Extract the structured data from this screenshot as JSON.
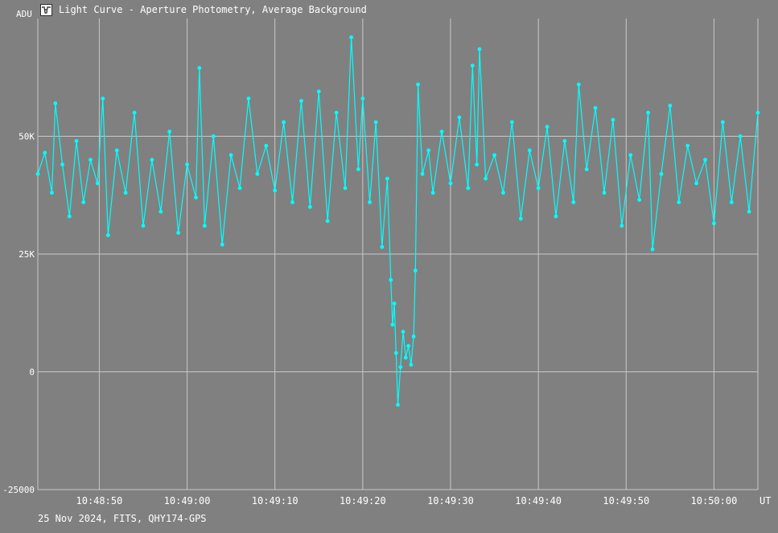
{
  "window": {
    "title": "Light Curve - Aperture Photometry, Average Background"
  },
  "footer": {
    "info": "25 Nov 2024, FITS, QHY174-GPS"
  },
  "icons": {
    "app": "light-curve-app-icon"
  },
  "colors": {
    "background": "#808080",
    "grid": "#c8c8c8",
    "series": "#00ffff",
    "text": "#ffffff"
  },
  "chart_data": {
    "type": "line",
    "title": "Light Curve - Aperture Photometry, Average Background",
    "xlabel": "UT",
    "ylabel": "ADU",
    "ylim": [
      -25000,
      75000
    ],
    "xlim": [
      "10:48:43",
      "10:50:05"
    ],
    "y_ticks": [
      {
        "value": 50000,
        "label": "50K"
      },
      {
        "value": 25000,
        "label": "25K"
      },
      {
        "value": 0,
        "label": "0"
      },
      {
        "value": -25000,
        "label": "-25000"
      }
    ],
    "x_ticks": [
      "10:48:50",
      "10:49:00",
      "10:49:10",
      "10:49:20",
      "10:49:30",
      "10:49:40",
      "10:49:50",
      "10:50:00"
    ],
    "grid": true,
    "markers": true,
    "series": [
      {
        "baseline": 43000,
        "points": [
          [
            "10:48:43.0",
            42000
          ],
          [
            "10:48:43.8",
            46500
          ],
          [
            "10:48:44.6",
            38000
          ],
          [
            "10:48:45.0",
            57000
          ],
          [
            "10:48:45.8",
            44000
          ],
          [
            "10:48:46.6",
            33000
          ],
          [
            "10:48:47.4",
            49000
          ],
          [
            "10:48:48.2",
            36000
          ],
          [
            "10:48:49.0",
            45000
          ],
          [
            "10:48:49.8",
            40000
          ],
          [
            "10:48:50.4",
            58000
          ],
          [
            "10:48:51.0",
            29000
          ],
          [
            "10:48:52.0",
            47000
          ],
          [
            "10:48:53.0",
            38000
          ],
          [
            "10:48:54.0",
            55000
          ],
          [
            "10:48:55.0",
            31000
          ],
          [
            "10:48:56.0",
            45000
          ],
          [
            "10:48:57.0",
            34000
          ],
          [
            "10:48:58.0",
            51000
          ],
          [
            "10:48:59.0",
            29500
          ],
          [
            "10:49:00.0",
            44000
          ],
          [
            "10:49:01.0",
            37000
          ],
          [
            "10:49:01.4",
            64500
          ],
          [
            "10:49:02.0",
            31000
          ],
          [
            "10:49:03.0",
            50000
          ],
          [
            "10:49:04.0",
            27000
          ],
          [
            "10:49:05.0",
            46000
          ],
          [
            "10:49:06.0",
            39000
          ],
          [
            "10:49:07.0",
            58000
          ],
          [
            "10:49:08.0",
            42000
          ],
          [
            "10:49:09.0",
            48000
          ],
          [
            "10:49:10.0",
            38500
          ],
          [
            "10:49:11.0",
            53000
          ],
          [
            "10:49:12.0",
            36000
          ],
          [
            "10:49:13.0",
            57500
          ],
          [
            "10:49:14.0",
            35000
          ],
          [
            "10:49:15.0",
            59500
          ],
          [
            "10:49:16.0",
            32000
          ],
          [
            "10:49:17.0",
            55000
          ],
          [
            "10:49:18.0",
            39000
          ],
          [
            "10:49:18.7",
            71000
          ],
          [
            "10:49:19.5",
            43000
          ],
          [
            "10:49:20.0",
            58000
          ],
          [
            "10:49:20.8",
            36000
          ],
          [
            "10:49:21.5",
            53000
          ],
          [
            "10:49:22.2",
            26500
          ],
          [
            "10:49:22.8",
            41000
          ],
          [
            "10:49:23.2",
            19500
          ],
          [
            "10:49:23.4",
            10000
          ],
          [
            "10:49:23.6",
            14500
          ],
          [
            "10:49:23.8",
            4000
          ],
          [
            "10:49:24.0",
            -7000
          ],
          [
            "10:49:24.3",
            1000
          ],
          [
            "10:49:24.6",
            8500
          ],
          [
            "10:49:24.9",
            3000
          ],
          [
            "10:49:25.2",
            5500
          ],
          [
            "10:49:25.5",
            1500
          ],
          [
            "10:49:25.8",
            7500
          ],
          [
            "10:49:26.0",
            21500
          ],
          [
            "10:49:26.3",
            61000
          ],
          [
            "10:49:26.8",
            42000
          ],
          [
            "10:49:27.5",
            47000
          ],
          [
            "10:49:28.0",
            38000
          ],
          [
            "10:49:29.0",
            51000
          ],
          [
            "10:49:30.0",
            40000
          ],
          [
            "10:49:31.0",
            54000
          ],
          [
            "10:49:32.0",
            39000
          ],
          [
            "10:49:32.5",
            65000
          ],
          [
            "10:49:33.0",
            44000
          ],
          [
            "10:49:33.3",
            68500
          ],
          [
            "10:49:34.0",
            41000
          ],
          [
            "10:49:35.0",
            46000
          ],
          [
            "10:49:36.0",
            38000
          ],
          [
            "10:49:37.0",
            53000
          ],
          [
            "10:49:38.0",
            32500
          ],
          [
            "10:49:39.0",
            47000
          ],
          [
            "10:49:40.0",
            39000
          ],
          [
            "10:49:41.0",
            52000
          ],
          [
            "10:49:42.0",
            33000
          ],
          [
            "10:49:43.0",
            49000
          ],
          [
            "10:49:44.0",
            36000
          ],
          [
            "10:49:44.6",
            61000
          ],
          [
            "10:49:45.5",
            43000
          ],
          [
            "10:49:46.5",
            56000
          ],
          [
            "10:49:47.5",
            38000
          ],
          [
            "10:49:48.5",
            53500
          ],
          [
            "10:49:49.5",
            31000
          ],
          [
            "10:49:50.5",
            46000
          ],
          [
            "10:49:51.5",
            36500
          ],
          [
            "10:49:52.5",
            55000
          ],
          [
            "10:49:53.0",
            26000
          ],
          [
            "10:49:54.0",
            42000
          ],
          [
            "10:49:55.0",
            56500
          ],
          [
            "10:49:56.0",
            36000
          ],
          [
            "10:49:57.0",
            48000
          ],
          [
            "10:49:58.0",
            40000
          ],
          [
            "10:49:59.0",
            45000
          ],
          [
            "10:50:00.0",
            31500
          ],
          [
            "10:50:01.0",
            53000
          ],
          [
            "10:50:02.0",
            36000
          ],
          [
            "10:50:03.0",
            50000
          ],
          [
            "10:50:04.0",
            34000
          ],
          [
            "10:50:05.0",
            55000
          ]
        ]
      }
    ]
  }
}
